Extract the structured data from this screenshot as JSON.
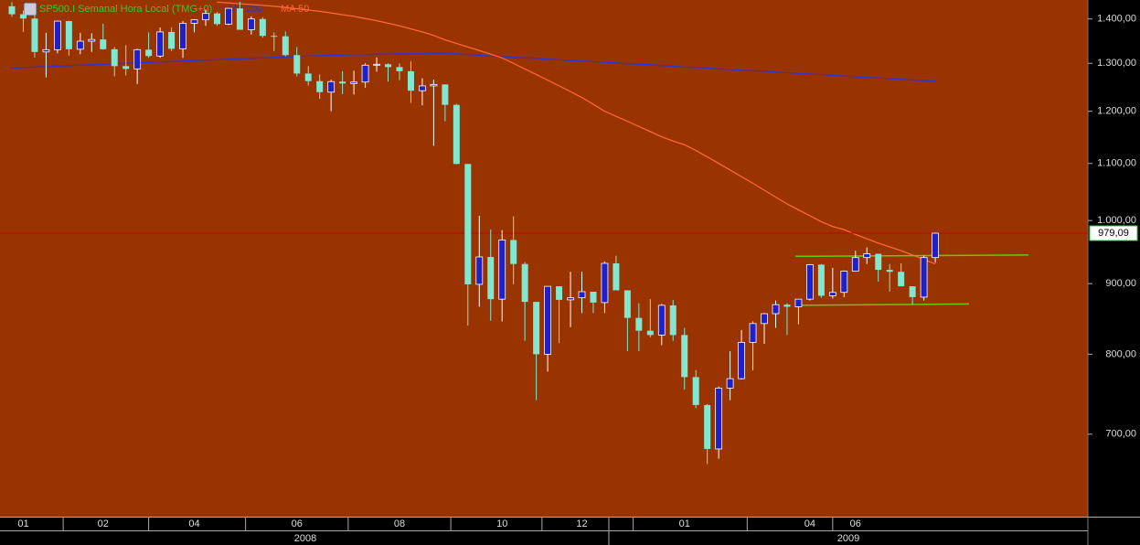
{
  "chart_data": {
    "type": "candlestick",
    "title": "SP500.I Semanal Hora Local (TMG+0)",
    "background": "#993300",
    "up_color": "#2020c8",
    "down_color": "#80e8d0",
    "log_scale": true,
    "ylim": [
      610,
      1445
    ],
    "yticks": [
      {
        "value": 700,
        "label": "700,00"
      },
      {
        "value": 800,
        "label": "800,00"
      },
      {
        "value": 900,
        "label": "900,00"
      },
      {
        "value": 1000,
        "label": "1.000,00"
      },
      {
        "value": 1100,
        "label": "1.100,00"
      },
      {
        "value": 1200,
        "label": "1.200,00"
      },
      {
        "value": 1300,
        "label": "1.300,00"
      },
      {
        "value": 1400,
        "label": "1.400,00"
      }
    ],
    "categories": [
      null,
      "01",
      null,
      null,
      null,
      null,
      null,
      null,
      "02",
      null,
      null,
      null,
      null,
      null,
      null,
      null,
      "04",
      null,
      null,
      null,
      null,
      null,
      null,
      null,
      null,
      "06",
      null,
      null,
      null,
      null,
      null,
      null,
      null,
      null,
      "08",
      null,
      null,
      null,
      null,
      null,
      null,
      null,
      null,
      "10",
      null,
      null,
      null,
      null,
      null,
      null,
      "12",
      null,
      null,
      null,
      null,
      null,
      null,
      null,
      null,
      "01",
      null,
      null,
      null,
      null,
      null,
      null,
      null,
      null,
      null,
      null,
      "04",
      null,
      null,
      null,
      "06",
      null,
      null,
      null,
      null,
      null,
      null,
      null
    ],
    "year_labels": [
      "2008",
      "2009"
    ],
    "open": [
      1430,
      1411,
      1401,
      1325,
      1330,
      1395,
      1331,
      1349,
      1353,
      1331,
      1294,
      1288,
      1330,
      1316,
      1370,
      1332,
      1390,
      1398,
      1413,
      1388,
      1425,
      1375,
      1400,
      1361,
      1360,
      1318,
      1278,
      1262,
      1239,
      1261,
      1257,
      1260,
      1296,
      1298,
      1292,
      1283,
      1242,
      1252,
      1255,
      1213,
      1099,
      899,
      941,
      877,
      968,
      930,
      873,
      800,
      896,
      876,
      879,
      888,
      872,
      931,
      890,
      850,
      832,
      826,
      868,
      826,
      770,
      735,
      683,
      756,
      768,
      816,
      842,
      856,
      869,
      866,
      877,
      929,
      882,
      887,
      919,
      940,
      946,
      921,
      918,
      896,
      880,
      940
    ],
    "high": [
      1440,
      1420,
      1416,
      1368,
      1396,
      1396,
      1368,
      1367,
      1389,
      1336,
      1340,
      1332,
      1369,
      1380,
      1380,
      1395,
      1399,
      1422,
      1416,
      1426,
      1441,
      1406,
      1404,
      1369,
      1371,
      1336,
      1294,
      1276,
      1265,
      1283,
      1284,
      1300,
      1313,
      1300,
      1300,
      1304,
      1268,
      1265,
      1255,
      1215,
      1099,
      1008,
      985,
      984,
      1007,
      933,
      873,
      896,
      896,
      918,
      918,
      888,
      934,
      943,
      890,
      871,
      877,
      870,
      876,
      836,
      779,
      736,
      758,
      804,
      833,
      845,
      857,
      875,
      871,
      877,
      930,
      930,
      924,
      920,
      951,
      956,
      946,
      930,
      931,
      896,
      943,
      980
    ],
    "low": [
      1405,
      1370,
      1313,
      1270,
      1322,
      1317,
      1320,
      1325,
      1330,
      1272,
      1274,
      1256,
      1312,
      1312,
      1327,
      1312,
      1369,
      1384,
      1384,
      1386,
      1375,
      1364,
      1357,
      1327,
      1315,
      1272,
      1253,
      1225,
      1200,
      1235,
      1234,
      1248,
      1282,
      1261,
      1264,
      1217,
      1212,
      1133,
      1180,
      1099,
      839,
      866,
      846,
      845,
      899,
      818,
      741,
      777,
      815,
      837,
      857,
      857,
      857,
      890,
      804,
      804,
      823,
      812,
      818,
      754,
      731,
      666,
      672,
      741,
      767,
      779,
      814,
      836,
      826,
      841,
      875,
      879,
      878,
      880,
      919,
      930,
      903,
      888,
      896,
      869,
      875,
      932
    ],
    "close": [
      1411,
      1401,
      1325,
      1330,
      1395,
      1331,
      1349,
      1353,
      1331,
      1294,
      1288,
      1330,
      1316,
      1370,
      1332,
      1390,
      1398,
      1413,
      1388,
      1425,
      1375,
      1400,
      1361,
      1360,
      1318,
      1278,
      1262,
      1239,
      1261,
      1257,
      1260,
      1296,
      1298,
      1292,
      1283,
      1242,
      1252,
      1255,
      1213,
      1099,
      899,
      941,
      877,
      968,
      930,
      873,
      800,
      896,
      876,
      879,
      888,
      872,
      931,
      890,
      850,
      832,
      826,
      868,
      826,
      770,
      735,
      683,
      756,
      768,
      816,
      842,
      856,
      869,
      866,
      877,
      929,
      882,
      887,
      919,
      940,
      946,
      921,
      918,
      896,
      880,
      940,
      979.09
    ],
    "series": [
      {
        "name": "MA 200",
        "color": "#3333cc",
        "values": [
          1290,
          1291,
          1292,
          1293,
          1294,
          1295,
          1296,
          1297,
          1298,
          1299,
          1300,
          1301,
          1302,
          1303,
          1304,
          1305,
          1306,
          1307,
          1308,
          1309,
          1310,
          1311,
          1312,
          1313,
          1314,
          1315,
          1316,
          1317,
          1318,
          1318,
          1319,
          1319,
          1320,
          1320,
          1321,
          1321,
          1321,
          1322,
          1322,
          1321,
          1319,
          1318,
          1316,
          1315,
          1313,
          1312,
          1311,
          1309,
          1308,
          1306,
          1305,
          1304,
          1302,
          1301,
          1299,
          1298,
          1297,
          1295,
          1294,
          1292,
          1291,
          1290,
          1288,
          1287,
          1285,
          1284,
          1283,
          1281,
          1280,
          1278,
          1277,
          1276,
          1274,
          1273,
          1271,
          1270,
          1269,
          1267,
          1266,
          1264,
          1263,
          1262
        ]
      },
      {
        "name": "MA 50",
        "color": "#ff6633",
        "values": [
          null,
          null,
          null,
          null,
          null,
          null,
          null,
          null,
          null,
          null,
          null,
          null,
          null,
          null,
          null,
          null,
          null,
          null,
          1440,
          1438,
          1436,
          1434,
          1432,
          1430,
          1427,
          1424,
          1421,
          1418,
          1414,
          1410,
          1406,
          1401,
          1396,
          1390,
          1384,
          1377,
          1370,
          1362,
          1352,
          1344,
          1336,
          1328,
          1320,
          1312,
          1300,
          1288,
          1276,
          1264,
          1252,
          1240,
          1228,
          1214,
          1200,
          1190,
          1180,
          1170,
          1160,
          1150,
          1142,
          1135,
          1124,
          1112,
          1100,
          1088,
          1076,
          1064,
          1052,
          1040,
          1028,
          1018,
          1008,
          998,
          990,
          985,
          977,
          970,
          963,
          957,
          951,
          944,
          937,
          930
        ]
      }
    ],
    "last_price": {
      "value": 979.09,
      "label": "979,09",
      "color": "#cc0000"
    },
    "trendlines": [
      {
        "color": "#66cc00",
        "values": [
          942,
          944
        ]
      },
      {
        "color": "#66cc00",
        "values": [
          868,
          870
        ]
      }
    ]
  }
}
